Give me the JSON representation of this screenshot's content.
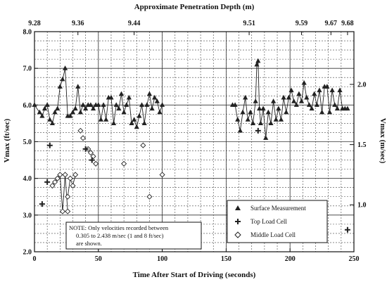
{
  "chart_data": {
    "type": "scatter",
    "title": "",
    "xlabel": "Time After Start of Driving (seconds)",
    "ylabel_left": "Vmax (ft/sec)",
    "ylabel_right": "Vmax (m/sec)",
    "top_axis_label": "Approximate Penetration Depth (m)",
    "xlim": [
      0,
      250
    ],
    "ylim_left": [
      2.0,
      8.0
    ],
    "x_ticks": [
      "0",
      "50",
      "100",
      "150",
      "200",
      "250"
    ],
    "x_tick_values": [
      0,
      50,
      100,
      150,
      200,
      250
    ],
    "y_left_ticks": [
      "2.0",
      "3.0",
      "4.0",
      "5.0",
      "6.0",
      "7.0",
      "8.0"
    ],
    "y_left_tick_values": [
      2,
      3,
      4,
      5,
      6,
      7,
      8
    ],
    "y_right_ticks": [
      "1.0",
      "1.5",
      "2.0"
    ],
    "y_right_tick_values_ftps": [
      3.281,
      4.921,
      6.562
    ],
    "top_ticks": [
      "9.28",
      "9.36",
      "9.44",
      "9.51",
      "9.59",
      "9.67",
      "9.68"
    ],
    "top_tick_times": [
      0,
      34,
      78,
      168,
      209,
      232,
      245
    ],
    "grid": true,
    "legend_position": "bottom-right",
    "series": [
      {
        "name": "Surface Measurement",
        "marker": "triangle",
        "connected": true,
        "segments": [
          {
            "x": [
              0,
              4,
              6,
              8,
              10,
              12,
              14,
              16,
              18,
              20,
              22,
              24,
              26,
              28,
              30,
              32,
              34,
              36,
              38,
              40,
              42,
              44,
              46,
              48,
              50,
              52,
              54,
              56,
              58,
              60,
              62,
              64,
              66,
              68,
              70,
              72,
              74,
              76,
              78,
              80,
              82,
              84,
              86,
              88,
              90,
              92,
              94,
              96,
              98,
              100
            ],
            "y": [
              6.0,
              5.8,
              5.7,
              5.9,
              6.0,
              5.6,
              5.5,
              5.8,
              5.9,
              6.5,
              6.7,
              7.0,
              5.7,
              5.7,
              5.8,
              5.9,
              6.5,
              5.8,
              6.0,
              5.9,
              6.0,
              6.0,
              5.9,
              6.0,
              6.0,
              5.6,
              6.0,
              5.6,
              6.2,
              6.2,
              5.5,
              6.0,
              5.9,
              6.3,
              5.8,
              6.0,
              6.2,
              5.5,
              5.6,
              5.4,
              5.7,
              6.0,
              5.5,
              6.0,
              6.3,
              5.9,
              6.2,
              6.1,
              5.8,
              6.0
            ]
          },
          {
            "x": [
              155,
              157,
              159,
              161,
              163,
              165,
              167,
              169,
              171,
              173,
              174,
              175,
              176,
              177,
              179,
              181,
              183,
              185,
              187,
              189,
              191,
              193,
              195,
              197,
              199,
              201,
              203,
              205,
              207,
              209,
              211,
              213,
              215,
              217,
              219,
              221,
              223,
              225,
              227,
              229,
              231,
              233,
              235,
              237,
              239,
              241,
              243,
              245
            ],
            "y": [
              6.0,
              6.0,
              5.6,
              5.3,
              5.8,
              6.2,
              5.6,
              5.8,
              5.5,
              6.1,
              7.1,
              7.2,
              5.9,
              5.5,
              5.9,
              5.1,
              5.8,
              5.5,
              6.1,
              5.6,
              5.9,
              5.6,
              6.2,
              5.8,
              6.2,
              6.4,
              6.1,
              6.0,
              6.3,
              6.1,
              6.6,
              6.2,
              6.0,
              5.9,
              6.3,
              6.0,
              6.4,
              5.8,
              6.5,
              6.5,
              5.8,
              6.4,
              6.0,
              5.9,
              6.4,
              5.9,
              5.9,
              5.9
            ]
          }
        ]
      },
      {
        "name": "Top Load Cell",
        "marker": "plus",
        "connected": false,
        "x": [
          6,
          10,
          12,
          40,
          45,
          175,
          245
        ],
        "y": [
          3.3,
          3.9,
          4.9,
          4.8,
          4.5,
          5.3,
          2.6
        ]
      },
      {
        "name": "Middle Load Cell",
        "marker": "diamond",
        "connected": true,
        "segments": [
          {
            "x": [
              14,
              16,
              18,
              20,
              22,
              24,
              26
            ],
            "y": [
              3.8,
              3.9,
              4.0,
              4.1,
              3.1,
              4.1,
              3.1
            ]
          },
          {
            "x": [
              26,
              28,
              30,
              32
            ],
            "y": [
              3.5,
              4.0,
              3.8,
              4.1
            ]
          }
        ],
        "scatter": {
          "x": [
            36,
            38,
            42,
            44,
            46,
            48,
            70,
            85,
            90,
            100
          ],
          "y": [
            5.3,
            5.1,
            4.8,
            4.7,
            4.6,
            4.4,
            4.4,
            4.9,
            3.5,
            4.1
          ]
        }
      }
    ],
    "note": "NOTE:  Only velocities recorded between 0.305 to 2.438 m/sec (1 and 8 ft/sec) are shown."
  },
  "colors": {
    "ink": "#222222",
    "grid": "#444444",
    "background": "#ffffff"
  },
  "legend": {
    "items": [
      "Surface Measurement",
      "Top Load Cell",
      "Middle Load Cell"
    ]
  },
  "note_lines": [
    "NOTE:  Only velocities recorded between",
    "0.305 to 2.438 m/sec (1 and 8 ft/sec)",
    "are shown."
  ]
}
